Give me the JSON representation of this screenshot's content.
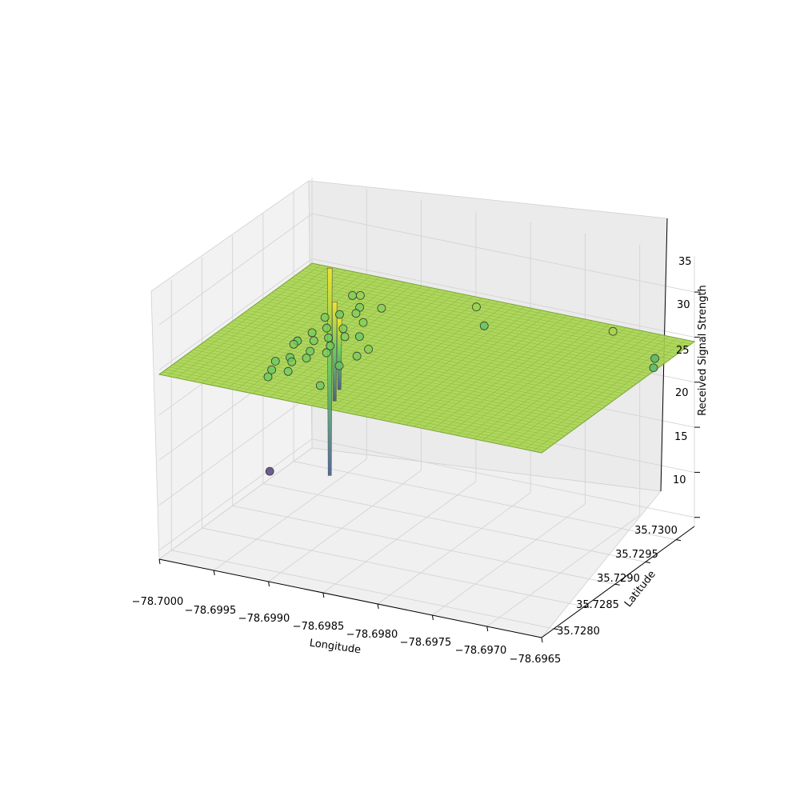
{
  "chart_data": {
    "type": "3d-surface-scatter",
    "title": "",
    "xlabel": "Longitude",
    "ylabel": "Latitude",
    "zlabel": "Received Signal Strength",
    "xlim": [
      -78.7,
      -78.6965
    ],
    "ylim": [
      35.7278,
      35.7303
    ],
    "zlim": [
      9,
      39
    ],
    "x_ticks": [
      "−78.7000",
      "−78.6995",
      "−78.6990",
      "−78.6985",
      "−78.6980",
      "−78.6975",
      "−78.6970",
      "−78.6965"
    ],
    "y_ticks": [
      "35.7280",
      "35.7285",
      "35.7290",
      "35.7295",
      "35.7300"
    ],
    "z_ticks": [
      "10",
      "15",
      "20",
      "25",
      "30",
      "35"
    ],
    "colormap": "viridis",
    "surface_level": 29.5,
    "surface_color": "#a8d44f",
    "spikes": [
      {
        "lon": -78.69925,
        "lat": 35.72925,
        "top": 36,
        "bottom": 13
      },
      {
        "lon": -78.69915,
        "lat": 35.72915,
        "top": 33,
        "bottom": 22
      },
      {
        "lon": -78.69905,
        "lat": 35.72905,
        "top": 32,
        "bottom": 24
      }
    ],
    "points": [
      {
        "lon": -78.69935,
        "lat": 35.7298,
        "rss": 30.0
      },
      {
        "lon": -78.69925,
        "lat": 35.72975,
        "rss": 30.5
      },
      {
        "lon": -78.6992,
        "lat": 35.72965,
        "rss": 29.8
      },
      {
        "lon": -78.699,
        "lat": 35.72965,
        "rss": 30.2
      },
      {
        "lon": -78.6993,
        "lat": 35.7295,
        "rss": 29.5
      },
      {
        "lon": -78.69915,
        "lat": 35.7295,
        "rss": 30.0
      },
      {
        "lon": -78.69935,
        "lat": 35.72935,
        "rss": 29.8
      },
      {
        "lon": -78.699,
        "lat": 35.72935,
        "rss": 30.1
      },
      {
        "lon": -78.69925,
        "lat": 35.7292,
        "rss": 29.6
      },
      {
        "lon": -78.6991,
        "lat": 35.7292,
        "rss": 29.9
      },
      {
        "lon": -78.69895,
        "lat": 35.7292,
        "rss": 29.4
      },
      {
        "lon": -78.6993,
        "lat": 35.72905,
        "rss": 29.7
      },
      {
        "lon": -78.69915,
        "lat": 35.72905,
        "rss": 29.5
      },
      {
        "lon": -78.699,
        "lat": 35.72905,
        "rss": 30.0
      },
      {
        "lon": -78.69935,
        "lat": 35.7289,
        "rss": 29.4
      },
      {
        "lon": -78.6992,
        "lat": 35.7289,
        "rss": 29.8
      },
      {
        "lon": -78.69905,
        "lat": 35.7289,
        "rss": 29.6
      },
      {
        "lon": -78.6993,
        "lat": 35.72875,
        "rss": 29.9
      },
      {
        "lon": -78.69915,
        "lat": 35.72875,
        "rss": 29.5
      },
      {
        "lon": -78.699,
        "lat": 35.72875,
        "rss": 29.7
      },
      {
        "lon": -78.69925,
        "lat": 35.7286,
        "rss": 29.3
      },
      {
        "lon": -78.6991,
        "lat": 35.7286,
        "rss": 29.6
      },
      {
        "lon": -78.6993,
        "lat": 35.72845,
        "rss": 29.5
      },
      {
        "lon": -78.69915,
        "lat": 35.72845,
        "rss": 29.8
      },
      {
        "lon": -78.69925,
        "lat": 35.7283,
        "rss": 29.4
      },
      {
        "lon": -78.6991,
        "lat": 35.7283,
        "rss": 29.6
      },
      {
        "lon": -78.6992,
        "lat": 35.72815,
        "rss": 29.5
      },
      {
        "lon": -78.6991,
        "lat": 35.728,
        "rss": 20.0
      },
      {
        "lon": -78.69875,
        "lat": 35.7288,
        "rss": 29.7
      },
      {
        "lon": -78.6988,
        "lat": 35.7286,
        "rss": 29.5
      },
      {
        "lon": -78.6987,
        "lat": 35.7289,
        "rss": 30.1
      },
      {
        "lon": -78.69875,
        "lat": 35.7282,
        "rss": 29.4
      },
      {
        "lon": -78.6982,
        "lat": 35.7299,
        "rss": 29.0
      },
      {
        "lon": -78.6983,
        "lat": 35.72995,
        "rss": 30.6
      },
      {
        "lon": -78.69705,
        "lat": 35.72995,
        "rss": 31.0
      },
      {
        "lon": -78.69665,
        "lat": 35.7299,
        "rss": 28.2
      },
      {
        "lon": -78.69675,
        "lat": 35.7301,
        "rss": 28.0
      }
    ]
  }
}
